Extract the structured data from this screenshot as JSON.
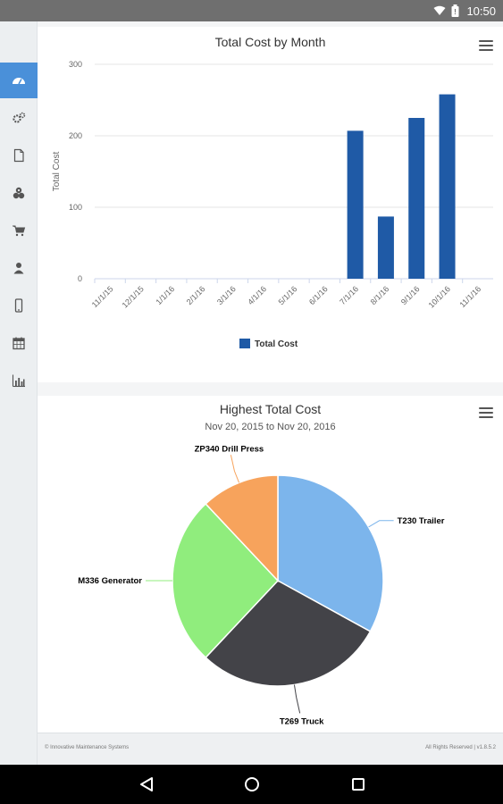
{
  "status_bar": {
    "time": "10:50",
    "icons": [
      "wifi-icon",
      "battery-icon"
    ]
  },
  "sidebar": {
    "items": [
      {
        "icon": "dashboard-icon",
        "active": true
      },
      {
        "icon": "gears-icon",
        "active": false
      },
      {
        "icon": "document-icon",
        "active": false
      },
      {
        "icon": "tools-icon",
        "active": false
      },
      {
        "icon": "cart-icon",
        "active": false
      },
      {
        "icon": "user-icon",
        "active": false
      },
      {
        "icon": "mobile-icon",
        "active": false
      },
      {
        "icon": "calendar-icon",
        "active": false
      },
      {
        "icon": "bar-chart-icon",
        "active": false
      }
    ],
    "active_color": "#4a90d9"
  },
  "chart_data": [
    {
      "type": "bar",
      "title": "Total Cost by Month",
      "ylabel": "Total Cost",
      "xlabel": "",
      "ylim": [
        0,
        300
      ],
      "yticks": [
        0,
        100,
        200,
        300
      ],
      "categories": [
        "11/1/15",
        "12/1/15",
        "1/1/16",
        "2/1/16",
        "3/1/16",
        "4/1/16",
        "5/1/16",
        "6/1/16",
        "7/1/16",
        "8/1/16",
        "9/1/16",
        "10/1/16",
        "11/1/16"
      ],
      "series": [
        {
          "name": "Total Cost",
          "color": "#1f5aa6",
          "values": [
            0,
            0,
            0,
            0,
            0,
            0,
            0,
            0,
            207,
            87,
            225,
            258,
            0
          ]
        }
      ],
      "legend": "bottom-center",
      "grid": true
    },
    {
      "type": "pie",
      "title": "Highest Total Cost",
      "subtitle": "Nov 20, 2015 to Nov 20, 2016",
      "slices": [
        {
          "label": "T230 Trailer",
          "value": 33,
          "color": "#7cb5ec"
        },
        {
          "label": "T269 Truck",
          "value": 29,
          "color": "#434348"
        },
        {
          "label": "M336 Generator",
          "value": 26,
          "color": "#90ed7d"
        },
        {
          "label": "ZP340 Drill Press",
          "value": 12,
          "color": "#f7a35c"
        }
      ]
    }
  ],
  "footer": {
    "left": "© Innovative Maintenance Systems",
    "right": "All Rights Reserved  |  v1.8.5.2"
  },
  "nav_bar": {
    "buttons": [
      "back-icon",
      "home-icon",
      "recents-icon"
    ]
  }
}
